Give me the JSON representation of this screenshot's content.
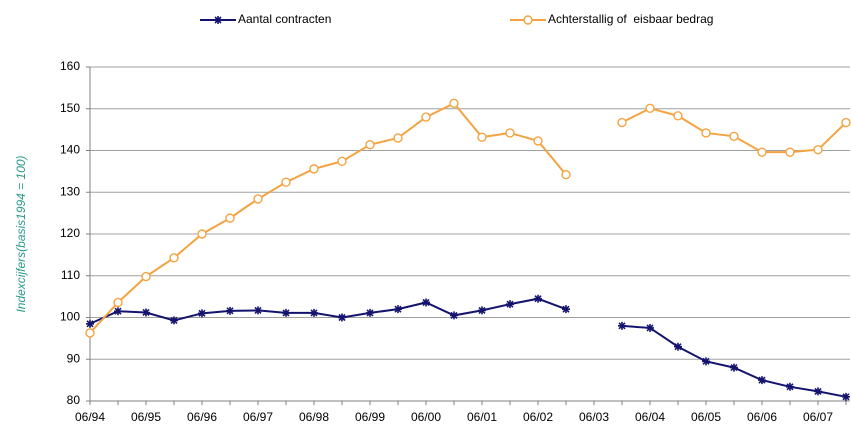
{
  "chart_data": {
    "type": "line",
    "y_label": "Indexcijfers(basis1994 = 100)",
    "categories": [
      "06/94",
      null,
      "06/95",
      null,
      "06/96",
      null,
      "06/97",
      null,
      "06/98",
      null,
      "06/99",
      null,
      "06/00",
      null,
      "06/01",
      null,
      "06/02",
      null,
      "06/03",
      null,
      "06/04",
      null,
      "06/05",
      null,
      "06/06",
      null,
      "06/07",
      null
    ],
    "series": [
      {
        "name": "Aantal contracten",
        "color": "#14146e",
        "marker": "star",
        "values": [
          98.5,
          101.5,
          101.2,
          99.3,
          101,
          101.6,
          101.7,
          101.1,
          101.1,
          100,
          101.1,
          102,
          103.6,
          100.5,
          101.7,
          103.2,
          104.5,
          102,
          null,
          98,
          97.5,
          93,
          89.5,
          88,
          85,
          83.4,
          82.3,
          81
        ]
      },
      {
        "name": "Achterstallig of  eisbaar bedrag",
        "color": "#f4a340",
        "marker": "circle",
        "values": [
          96.3,
          103.6,
          109.8,
          114.3,
          120,
          123.8,
          128.4,
          132.4,
          135.6,
          137.4,
          141.4,
          143,
          148,
          151.3,
          143.2,
          144.2,
          142.3,
          134.2,
          null,
          146.7,
          150.1,
          148.3,
          144.2,
          143.4,
          139.6,
          139.6,
          140.2,
          146.7
        ]
      }
    ],
    "ylim": [
      80,
      160
    ],
    "yticks": [
      80,
      90,
      100,
      110,
      120,
      130,
      140,
      150,
      160
    ],
    "grid": true,
    "legend": "top"
  }
}
